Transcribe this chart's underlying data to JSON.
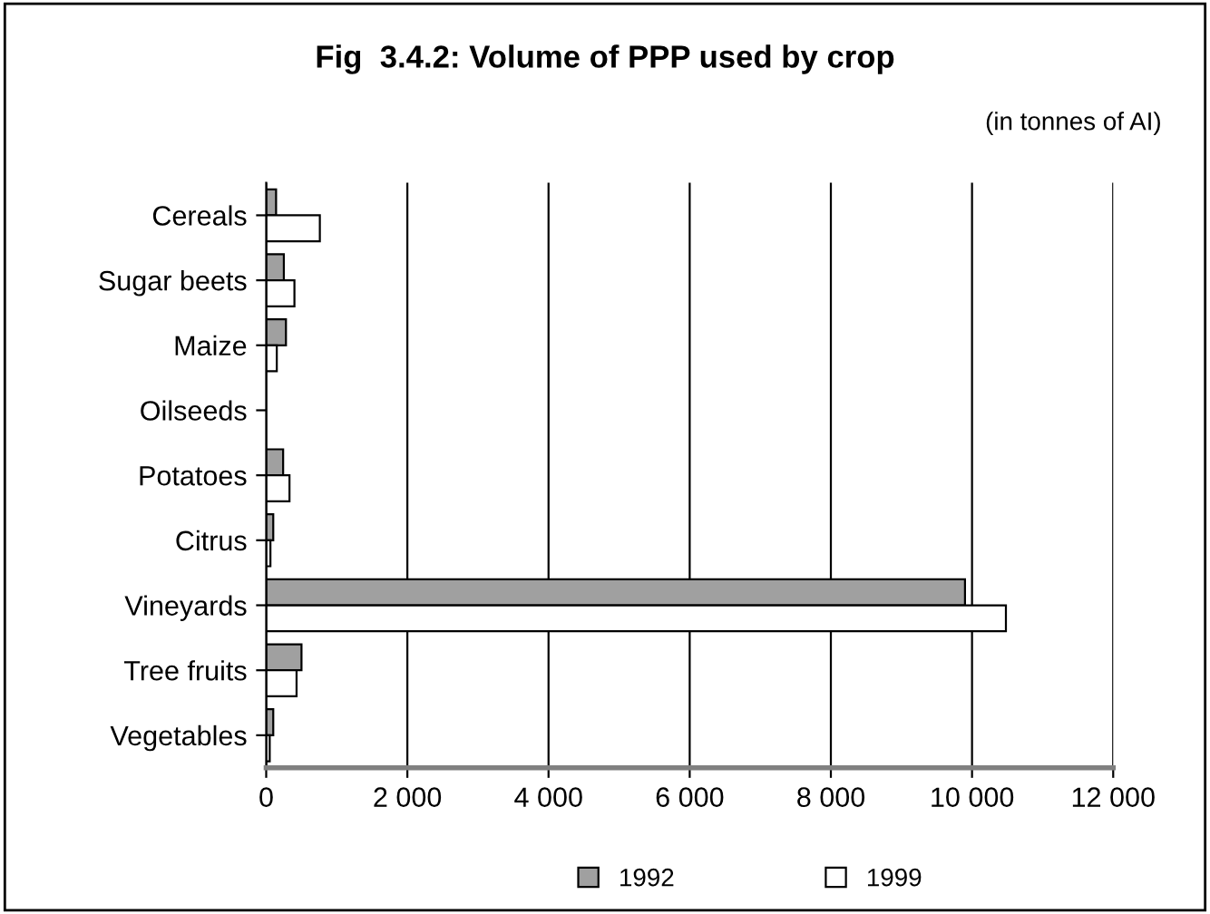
{
  "chart_data": {
    "type": "bar",
    "orientation": "horizontal",
    "title": "Fig  3.4.2: Volume of PPP used by crop",
    "annotations": [
      "(in tonnes of AI)"
    ],
    "categories": [
      "Cereals",
      "Sugar beets",
      "Maize",
      "Oilseeds",
      "Potatoes",
      "Citrus",
      "Vineyards",
      "Tree fruits",
      "Vegetables"
    ],
    "series": [
      {
        "name": "1992",
        "color": "#a0a0a0",
        "values": [
          140,
          250,
          280,
          0,
          240,
          100,
          9900,
          500,
          100
        ]
      },
      {
        "name": "1999",
        "color": "#ffffff",
        "values": [
          760,
          400,
          150,
          0,
          330,
          60,
          10480,
          430,
          50
        ]
      }
    ],
    "xlim": [
      0,
      12000
    ],
    "xticks": [
      0,
      {
        "value": 2000,
        "label": "2 000"
      },
      {
        "value": 4000,
        "label": "4 000"
      },
      {
        "value": 6000,
        "label": "6 000"
      },
      {
        "value": 8000,
        "label": "8 000"
      },
      {
        "value": 10000,
        "label": "10 000"
      },
      {
        "value": 12000,
        "label": "12 000"
      }
    ],
    "grid": "x",
    "legend": "bottom"
  }
}
